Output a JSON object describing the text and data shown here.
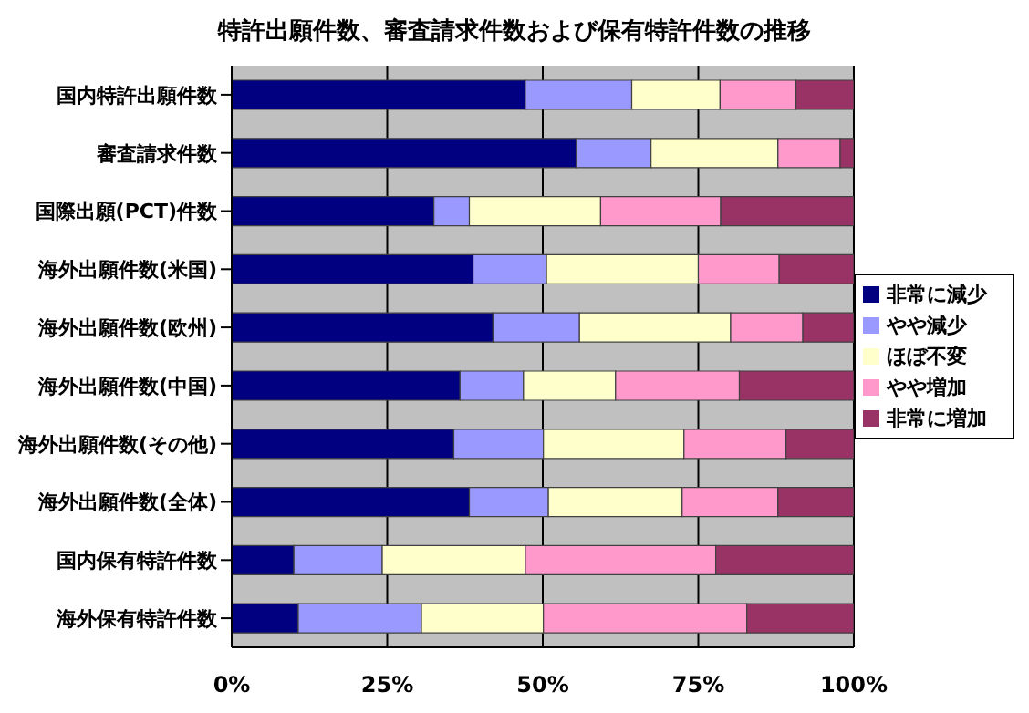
{
  "chart_data": {
    "type": "bar",
    "orientation": "horizontal",
    "stacked": true,
    "title": "特許出願件数、審査請求件数および保有特許件数の推移",
    "categories": [
      "国内特許出願件数",
      "審査請求件数",
      "国際出願(PCT)件数",
      "海外出願件数(米国)",
      "海外出願件数(欧州)",
      "海外出願件数(中国)",
      "海外出願件数(その他)",
      "海外出願件数(全体)",
      "国内保有特許件数",
      "海外保有特許件数"
    ],
    "series": [
      {
        "name": "非常に減少",
        "color": "#000080",
        "values": [
          47.2,
          55.4,
          32.5,
          38.8,
          42,
          36.7,
          35.7,
          38.2,
          10,
          10.7
        ]
      },
      {
        "name": "やや減少",
        "color": "#9999ff",
        "values": [
          17.1,
          12,
          5.7,
          11.8,
          13.9,
          10.2,
          14.4,
          12.7,
          14.2,
          19.8
        ]
      },
      {
        "name": "ほぼ不変",
        "color": "#ffffcc",
        "values": [
          14.2,
          20.4,
          21.1,
          24.4,
          24.3,
          14.8,
          22.6,
          21.5,
          23,
          19.6
        ]
      },
      {
        "name": "やや増加",
        "color": "#ff99cc",
        "values": [
          12.2,
          10,
          19.3,
          13,
          11.6,
          19.9,
          16.4,
          15.4,
          30.6,
          32.7
        ]
      },
      {
        "name": "非常に増加",
        "color": "#993366",
        "values": [
          9.3,
          2.2,
          21.4,
          12,
          8.2,
          18.4,
          10.9,
          12.2,
          22.2,
          17.2
        ]
      }
    ],
    "xlim": [
      0,
      100
    ],
    "xticks": [
      {
        "value": 0,
        "label": "0%"
      },
      {
        "value": 25,
        "label": "25%"
      },
      {
        "value": 50,
        "label": "50%"
      },
      {
        "value": 75,
        "label": "75%"
      },
      {
        "value": 100,
        "label": "100%"
      }
    ],
    "grid": "x",
    "legend": "right"
  }
}
